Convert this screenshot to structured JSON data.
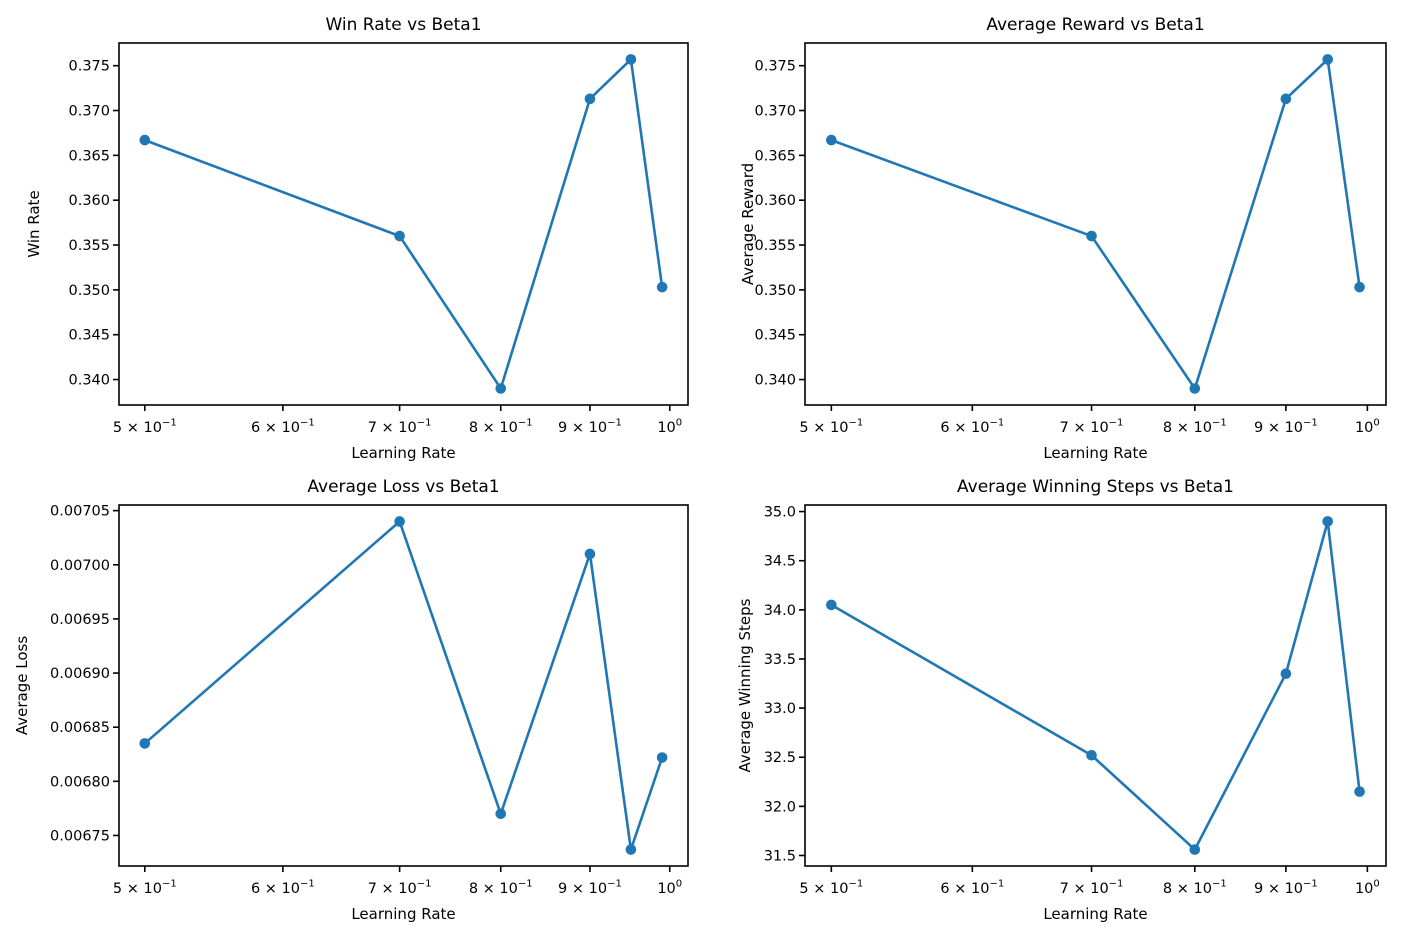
{
  "figure": {
    "background": "#ffffff",
    "line_color": "#1f77b4",
    "marker_color": "#1f77b4",
    "axis_color": "#000000",
    "text_color": "#000000"
  },
  "chart_data": [
    {
      "type": "line",
      "title": "Win Rate vs Beta1",
      "xlabel": "Learning Rate",
      "ylabel": "Win Rate",
      "xscale": "log",
      "x": [
        0.5,
        0.7,
        0.8,
        0.9,
        0.95,
        0.99
      ],
      "y": [
        0.3667,
        0.356,
        0.339,
        0.3713,
        0.3757,
        0.3503
      ],
      "xlim": [
        0.48326,
        1.02439
      ],
      "ylim": [
        0.33716,
        0.37753
      ],
      "xticks": [
        0.5,
        0.6,
        0.7,
        0.8,
        0.9,
        1.0
      ],
      "xtick_labels": [
        {
          "m": "5 × 10",
          "e": "−1"
        },
        {
          "m": "6 × 10",
          "e": "−1"
        },
        {
          "m": "7 × 10",
          "e": "−1"
        },
        {
          "m": "8 × 10",
          "e": "−1"
        },
        {
          "m": "9 × 10",
          "e": "−1"
        },
        {
          "m": "10",
          "e": "0"
        }
      ],
      "yticks": [
        0.34,
        0.345,
        0.35,
        0.355,
        0.36,
        0.365,
        0.37,
        0.375
      ],
      "ytick_labels": [
        "0.340",
        "0.345",
        "0.350",
        "0.355",
        "0.360",
        "0.365",
        "0.370",
        "0.375"
      ],
      "grid": false,
      "legend": null
    },
    {
      "type": "line",
      "title": "Average Reward vs Beta1",
      "xlabel": "Learning Rate",
      "ylabel": "Average Reward",
      "xscale": "log",
      "x": [
        0.5,
        0.7,
        0.8,
        0.9,
        0.95,
        0.99
      ],
      "y": [
        0.3667,
        0.356,
        0.339,
        0.3713,
        0.3757,
        0.3503
      ],
      "xlim": [
        0.48326,
        1.02439
      ],
      "ylim": [
        0.33716,
        0.37753
      ],
      "xticks": [
        0.5,
        0.6,
        0.7,
        0.8,
        0.9,
        1.0
      ],
      "xtick_labels": [
        {
          "m": "5 × 10",
          "e": "−1"
        },
        {
          "m": "6 × 10",
          "e": "−1"
        },
        {
          "m": "7 × 10",
          "e": "−1"
        },
        {
          "m": "8 × 10",
          "e": "−1"
        },
        {
          "m": "9 × 10",
          "e": "−1"
        },
        {
          "m": "10",
          "e": "0"
        }
      ],
      "yticks": [
        0.34,
        0.345,
        0.35,
        0.355,
        0.36,
        0.365,
        0.37,
        0.375
      ],
      "ytick_labels": [
        "0.340",
        "0.345",
        "0.350",
        "0.355",
        "0.360",
        "0.365",
        "0.370",
        "0.375"
      ],
      "grid": false,
      "legend": null
    },
    {
      "type": "line",
      "title": "Average Loss vs Beta1",
      "xlabel": "Learning Rate",
      "ylabel": "Average Loss",
      "xscale": "log",
      "x": [
        0.5,
        0.7,
        0.8,
        0.9,
        0.95,
        0.99
      ],
      "y": [
        0.006835,
        0.00704,
        0.00677,
        0.00701,
        0.006737,
        0.006822
      ],
      "xlim": [
        0.48326,
        1.02439
      ],
      "ylim": [
        0.0067218,
        0.0070552
      ],
      "xticks": [
        0.5,
        0.6,
        0.7,
        0.8,
        0.9,
        1.0
      ],
      "xtick_labels": [
        {
          "m": "5 × 10",
          "e": "−1"
        },
        {
          "m": "6 × 10",
          "e": "−1"
        },
        {
          "m": "7 × 10",
          "e": "−1"
        },
        {
          "m": "8 × 10",
          "e": "−1"
        },
        {
          "m": "9 × 10",
          "e": "−1"
        },
        {
          "m": "10",
          "e": "0"
        }
      ],
      "yticks": [
        0.00675,
        0.0068,
        0.00685,
        0.0069,
        0.00695,
        0.007,
        0.00705
      ],
      "ytick_labels": [
        "0.00675",
        "0.00680",
        "0.00685",
        "0.00690",
        "0.00695",
        "0.00700",
        "0.00705"
      ],
      "grid": false,
      "legend": null
    },
    {
      "type": "line",
      "title": "Average Winning Steps vs Beta1",
      "xlabel": "Learning Rate",
      "ylabel": "Average Winning Steps",
      "xscale": "log",
      "x": [
        0.5,
        0.7,
        0.8,
        0.9,
        0.95,
        0.99
      ],
      "y": [
        34.05,
        32.52,
        31.56,
        33.35,
        34.9,
        32.15
      ],
      "xlim": [
        0.48326,
        1.02439
      ],
      "ylim": [
        31.393,
        35.067
      ],
      "xticks": [
        0.5,
        0.6,
        0.7,
        0.8,
        0.9,
        1.0
      ],
      "xtick_labels": [
        {
          "m": "5 × 10",
          "e": "−1"
        },
        {
          "m": "6 × 10",
          "e": "−1"
        },
        {
          "m": "7 × 10",
          "e": "−1"
        },
        {
          "m": "8 × 10",
          "e": "−1"
        },
        {
          "m": "9 × 10",
          "e": "−1"
        },
        {
          "m": "10",
          "e": "0"
        }
      ],
      "yticks": [
        31.5,
        32.0,
        32.5,
        33.0,
        33.5,
        34.0,
        34.5,
        35.0
      ],
      "ytick_labels": [
        "31.5",
        "32.0",
        "32.5",
        "33.0",
        "33.5",
        "34.0",
        "34.5",
        "35.0"
      ],
      "grid": false,
      "legend": null
    }
  ]
}
